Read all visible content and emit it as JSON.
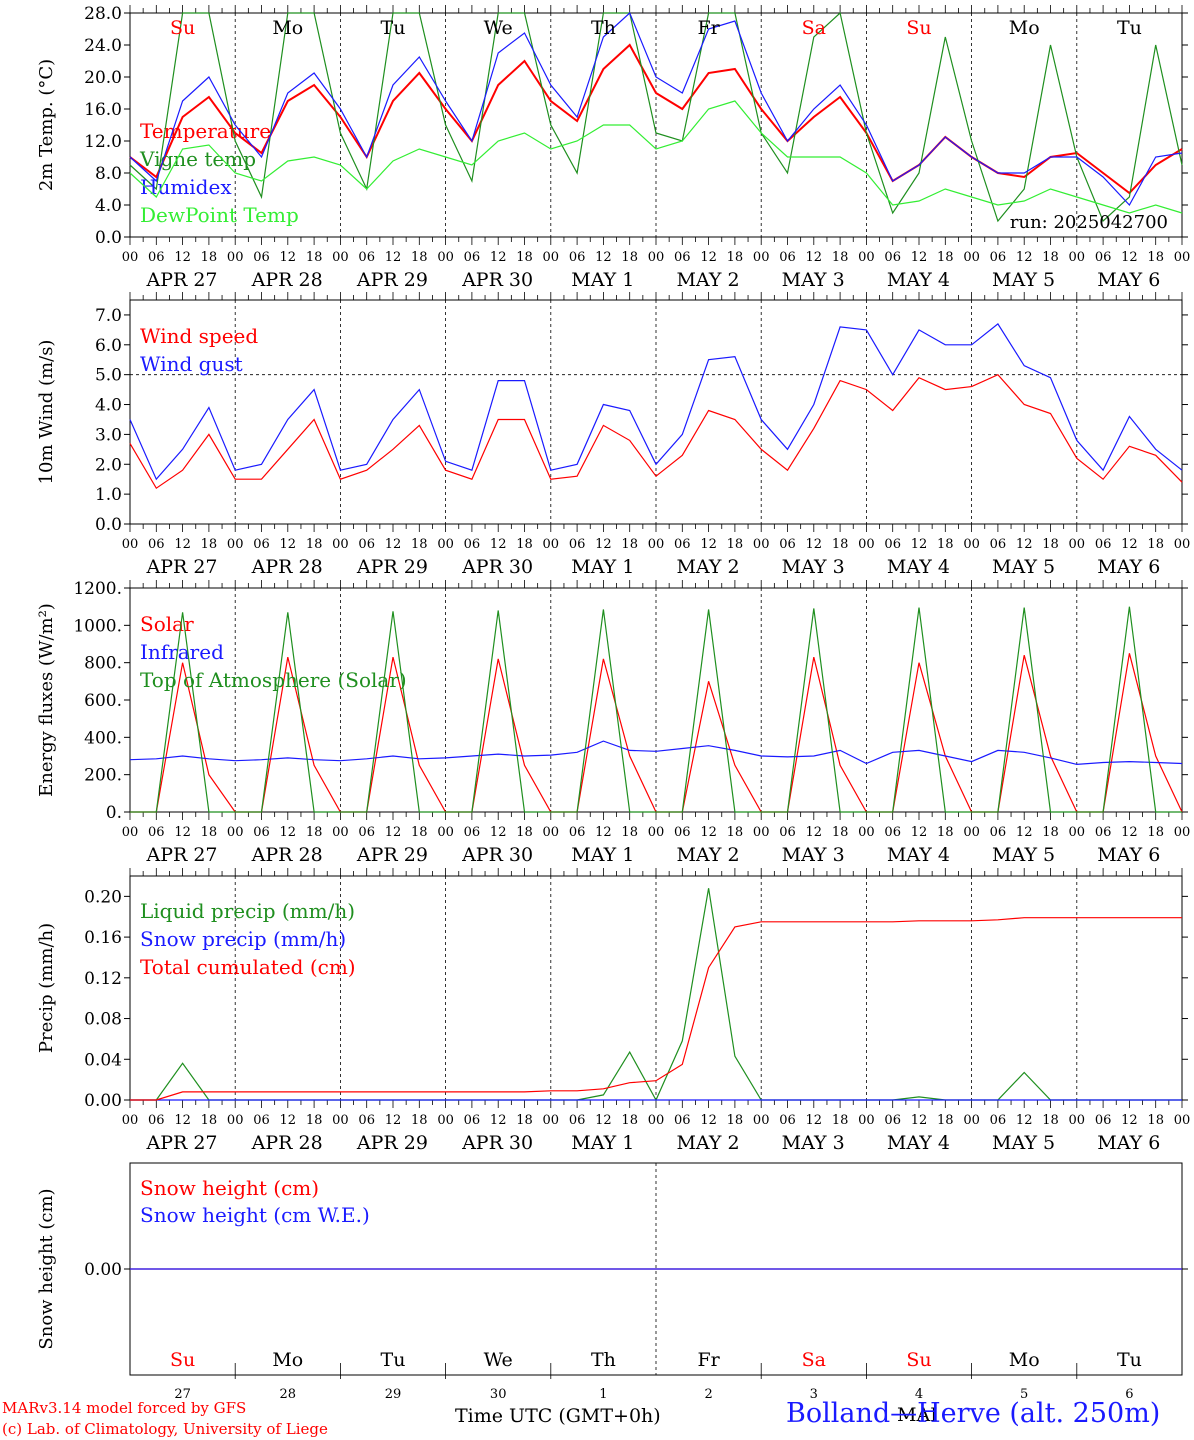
{
  "colors": {
    "red": "#ff0000",
    "green": "#1f8f1f",
    "blue": "#1a1aff",
    "lime": "#33ee33",
    "black": "#000000"
  },
  "x_hour_labels": [
    "00",
    "06",
    "12",
    "18"
  ],
  "x_date_labels": [
    "APR 27",
    "APR 28",
    "APR 29",
    "APR 30",
    "MAY  1",
    "MAY  2",
    "MAY  3",
    "MAY  4",
    "MAY  5",
    "MAY  6"
  ],
  "x_final_hour": "00",
  "weekdays": [
    "Su",
    "Mo",
    "Tu",
    "We",
    "Th",
    "Fr",
    "Sa",
    "Su",
    "Mo",
    "Tu"
  ],
  "weekday_colors": [
    "red",
    "black",
    "black",
    "black",
    "black",
    "black",
    "red",
    "red",
    "black",
    "black"
  ],
  "day_numbers": [
    "27",
    "28",
    "29",
    "30",
    "1",
    "2",
    "3",
    "4",
    "5",
    "6"
  ],
  "footer": {
    "model": "MARv3.14 model forced by GFS",
    "lab": "(c) Lab. of Climatology, University of Liege",
    "time_label": "Time UTC (GMT+0h)",
    "station": "Bolland—Herve (alt. 250m)",
    "month": "MAI"
  },
  "chart_data": [
    {
      "type": "line",
      "ylabel": "2m Temp. (°C)",
      "ylim": [
        0,
        28
      ],
      "yticks": [
        "0.0",
        "4.0",
        "8.0",
        "12.0",
        "16.0",
        "20.0",
        "24.0",
        "28.0"
      ],
      "run": "run: 2025042700",
      "x_hours": [
        0,
        6,
        12,
        18,
        24,
        30,
        36,
        42,
        48,
        54,
        60,
        66,
        72,
        78,
        84,
        90,
        96,
        102,
        108,
        114,
        120,
        126,
        132,
        138,
        144,
        150,
        156,
        162,
        168,
        174,
        180,
        186,
        192,
        198,
        204,
        210,
        216,
        222,
        228,
        234,
        240
      ],
      "series": [
        {
          "name": "Temperature",
          "color": "red",
          "values": [
            10,
            7.5,
            15,
            17.5,
            13,
            10.5,
            17,
            19,
            15,
            10,
            17,
            20.5,
            16,
            12,
            19,
            22,
            17,
            14.5,
            21,
            24,
            18,
            16,
            20.5,
            21,
            16,
            12,
            15,
            17.5,
            13,
            7,
            9,
            12.5,
            10,
            8,
            7.5,
            10,
            10.5,
            8,
            5.5,
            9,
            11
          ]
        },
        {
          "name": "Vigne temp",
          "color": "green",
          "values": [
            9,
            6,
            28,
            28,
            12,
            5,
            28,
            28,
            13,
            6,
            28,
            28,
            14,
            7,
            28,
            28,
            14,
            8,
            28,
            28,
            13,
            12,
            28,
            28,
            13,
            8,
            25,
            28,
            13,
            3,
            8,
            25,
            12,
            2,
            6,
            24,
            10,
            2,
            5,
            24,
            9
          ]
        },
        {
          "name": "Humidex",
          "color": "blue",
          "values": [
            10,
            7,
            17,
            20,
            14,
            10,
            18,
            20.5,
            16,
            10,
            19,
            22.5,
            17,
            12,
            23,
            25.5,
            19,
            15,
            25,
            28,
            20,
            18,
            26,
            27,
            18,
            12,
            16,
            19,
            14,
            7,
            9,
            12.5,
            10,
            8,
            8,
            10,
            10,
            7.5,
            4,
            10,
            10.5
          ]
        },
        {
          "name": "DewPoint Temp",
          "color": "lime",
          "values": [
            8,
            5,
            11,
            11.5,
            8,
            7,
            9.5,
            10,
            9,
            6,
            9.5,
            11,
            10,
            9,
            12,
            13,
            11,
            12,
            14,
            14,
            11,
            12,
            16,
            17,
            13,
            10,
            10,
            10,
            8,
            4,
            4.5,
            6,
            5,
            4,
            4.5,
            6,
            5,
            4,
            3,
            4,
            3
          ]
        }
      ]
    },
    {
      "type": "line",
      "ylabel": "10m Wind (m/s)",
      "ylim": [
        0,
        7.5
      ],
      "yticks": [
        "0.0",
        "1.0",
        "2.0",
        "3.0",
        "4.0",
        "5.0",
        "6.0",
        "7.0"
      ],
      "ref_line": 5.0,
      "x_hours": [
        0,
        6,
        12,
        18,
        24,
        30,
        36,
        42,
        48,
        54,
        60,
        66,
        72,
        78,
        84,
        90,
        96,
        102,
        108,
        114,
        120,
        126,
        132,
        138,
        144,
        150,
        156,
        162,
        168,
        174,
        180,
        186,
        192,
        198,
        204,
        210,
        216,
        222,
        228,
        234,
        240
      ],
      "series": [
        {
          "name": "Wind speed",
          "color": "red",
          "values": [
            2.7,
            1.2,
            1.8,
            3.0,
            1.5,
            1.5,
            2.5,
            3.5,
            1.5,
            1.8,
            2.5,
            3.3,
            1.8,
            1.5,
            3.5,
            3.5,
            1.5,
            1.6,
            3.3,
            2.8,
            1.6,
            2.3,
            3.8,
            3.5,
            2.5,
            1.8,
            3.2,
            4.8,
            4.5,
            3.8,
            4.9,
            4.5,
            4.6,
            5.0,
            4.0,
            3.7,
            2.2,
            1.5,
            2.6,
            2.3,
            1.4
          ]
        },
        {
          "name": "Wind gust",
          "color": "blue",
          "values": [
            3.5,
            1.5,
            2.5,
            3.9,
            1.8,
            2.0,
            3.5,
            4.5,
            1.8,
            2.0,
            3.5,
            4.5,
            2.1,
            1.8,
            4.8,
            4.8,
            1.8,
            2.0,
            4.0,
            3.8,
            2.0,
            3.0,
            5.5,
            5.6,
            3.5,
            2.5,
            4.0,
            6.6,
            6.5,
            5.0,
            6.5,
            6.0,
            6.0,
            6.7,
            5.3,
            4.9,
            2.8,
            1.8,
            3.6,
            2.5,
            1.8
          ]
        }
      ]
    },
    {
      "type": "line",
      "ylabel": "Energy fluxes (W/m²)",
      "ylim": [
        0,
        1200
      ],
      "yticks": [
        "0.",
        "200.",
        "400.",
        "600.",
        "800.",
        "1000.",
        "1200."
      ],
      "x_hours": [
        0,
        6,
        12,
        18,
        24,
        30,
        36,
        42,
        48,
        54,
        60,
        66,
        72,
        78,
        84,
        90,
        96,
        102,
        108,
        114,
        120,
        126,
        132,
        138,
        144,
        150,
        156,
        162,
        168,
        174,
        180,
        186,
        192,
        198,
        204,
        210,
        216,
        222,
        228,
        234,
        240
      ],
      "series": [
        {
          "name": "Solar",
          "color": "red",
          "values": [
            0,
            0,
            800,
            200,
            0,
            0,
            830,
            250,
            0,
            0,
            830,
            250,
            0,
            0,
            820,
            250,
            0,
            0,
            820,
            300,
            0,
            0,
            700,
            250,
            0,
            0,
            830,
            250,
            0,
            0,
            800,
            300,
            0,
            0,
            840,
            300,
            0,
            0,
            850,
            300,
            0
          ]
        },
        {
          "name": "Infrared",
          "color": "blue",
          "values": [
            280,
            285,
            300,
            285,
            275,
            280,
            290,
            280,
            275,
            285,
            300,
            285,
            290,
            300,
            310,
            300,
            305,
            320,
            380,
            330,
            325,
            340,
            355,
            330,
            300,
            295,
            300,
            330,
            260,
            320,
            330,
            300,
            270,
            330,
            320,
            290,
            255,
            265,
            270,
            265,
            260
          ]
        },
        {
          "name": "Top of Atmosphere (Solar)",
          "color": "green",
          "values": [
            0,
            0,
            1070,
            0,
            0,
            0,
            1070,
            0,
            0,
            0,
            1075,
            0,
            0,
            0,
            1080,
            0,
            0,
            0,
            1085,
            0,
            0,
            0,
            1085,
            0,
            0,
            0,
            1090,
            0,
            0,
            0,
            1095,
            0,
            0,
            0,
            1095,
            0,
            0,
            0,
            1100,
            0,
            0
          ]
        }
      ]
    },
    {
      "type": "line",
      "ylabel": "Precip (mm/h)",
      "ylim": [
        0,
        0.22
      ],
      "yticks": [
        "0.00",
        "0.04",
        "0.08",
        "0.12",
        "0.16",
        "0.20"
      ],
      "x_hours": [
        0,
        6,
        12,
        18,
        24,
        30,
        36,
        42,
        48,
        54,
        60,
        66,
        72,
        78,
        84,
        90,
        96,
        102,
        108,
        114,
        120,
        126,
        132,
        138,
        144,
        150,
        156,
        162,
        168,
        174,
        180,
        186,
        192,
        198,
        204,
        210,
        216,
        222,
        228,
        234,
        240
      ],
      "series": [
        {
          "name": "Liquid precip (mm/h)",
          "color": "green",
          "values": [
            0,
            0,
            0.036,
            0,
            0,
            0,
            0,
            0,
            0,
            0,
            0,
            0,
            0,
            0,
            0,
            0,
            0,
            0,
            0.005,
            0.047,
            0,
            0.058,
            0.208,
            0.043,
            0,
            0,
            0,
            0,
            0,
            0,
            0.003,
            0,
            0,
            0,
            0.027,
            0,
            0,
            0,
            0,
            0,
            0
          ]
        },
        {
          "name": "Snow precip (mm/h)",
          "color": "blue",
          "values": [
            0,
            0,
            0,
            0,
            0,
            0,
            0,
            0,
            0,
            0,
            0,
            0,
            0,
            0,
            0,
            0,
            0,
            0,
            0,
            0,
            0,
            0,
            0,
            0,
            0,
            0,
            0,
            0,
            0,
            0,
            0,
            0,
            0,
            0,
            0,
            0,
            0,
            0,
            0,
            0,
            0
          ]
        },
        {
          "name": "Total cumulated (cm)",
          "color": "red",
          "values": [
            0,
            0,
            0.008,
            0.008,
            0.008,
            0.008,
            0.008,
            0.008,
            0.008,
            0.008,
            0.008,
            0.008,
            0.008,
            0.008,
            0.008,
            0.008,
            0.009,
            0.009,
            0.011,
            0.017,
            0.019,
            0.035,
            0.13,
            0.17,
            0.175,
            0.175,
            0.175,
            0.175,
            0.175,
            0.175,
            0.176,
            0.176,
            0.176,
            0.177,
            0.179,
            0.179,
            0.179,
            0.179,
            0.179,
            0.179,
            0.179
          ]
        }
      ]
    },
    {
      "type": "line",
      "ylabel": "Snow height (cm)",
      "ylim": [
        -1,
        1
      ],
      "yticks": [
        "0.00"
      ],
      "x_hours": [
        0,
        240
      ],
      "series": [
        {
          "name": "Snow height (cm)",
          "color": "red",
          "values": [
            0,
            0
          ]
        },
        {
          "name": "Snow height (cm W.E.)",
          "color": "blue",
          "values": [
            0,
            0
          ]
        }
      ]
    }
  ]
}
